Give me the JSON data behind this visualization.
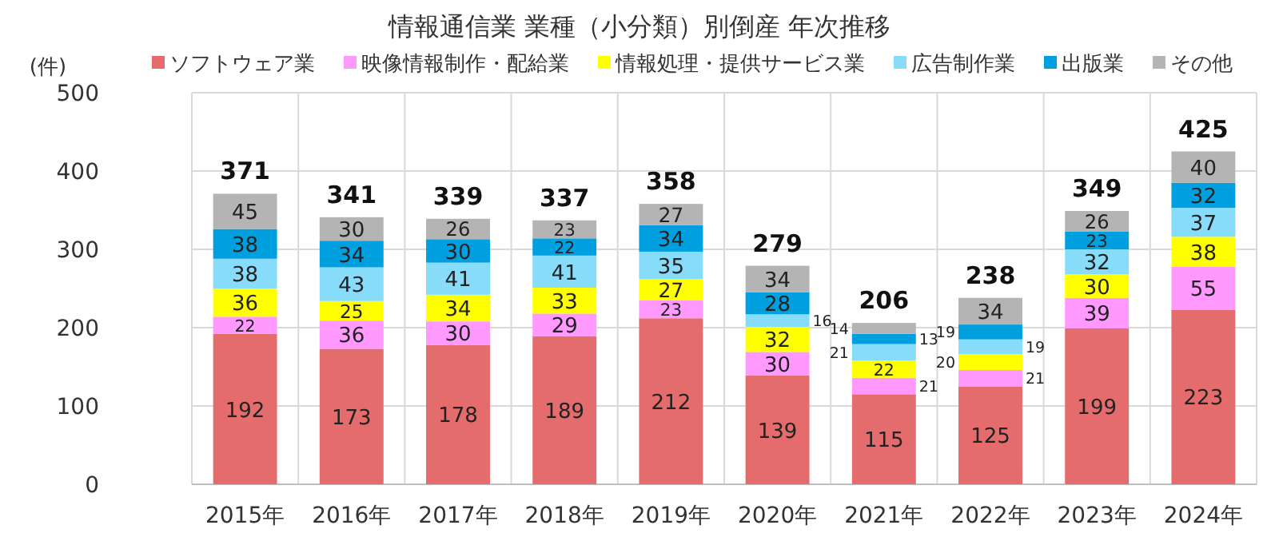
{
  "chart_data": {
    "type": "bar",
    "title": "情報通信業 業種（小分類）別倒産 年次推移",
    "ylabel": "(件)",
    "categories": [
      "2015年",
      "2016年",
      "2017年",
      "2018年",
      "2019年",
      "2020年",
      "2021年",
      "2022年",
      "2023年",
      "2024年"
    ],
    "stacked": true,
    "data_labels": true,
    "grid": true,
    "legend": "top",
    "ylim": [
      0,
      500
    ],
    "yticks": [
      0,
      100,
      200,
      300,
      400,
      500
    ],
    "totals": [
      "371",
      "341",
      "339",
      "337",
      "358",
      "279",
      "206",
      "238",
      "349",
      "425"
    ],
    "series": [
      {
        "name": "ソフトウェア業",
        "color": "#e46c6c",
        "values": [
          192,
          173,
          178,
          189,
          212,
          139,
          115,
          125,
          199,
          223
        ]
      },
      {
        "name": "映像情報制作・配給業",
        "color": "#ff99ff",
        "values": [
          22,
          36,
          30,
          29,
          23,
          30,
          21,
          21,
          39,
          55
        ]
      },
      {
        "name": "情報処理・提供サービス業",
        "color": "#ffff00",
        "values": [
          36,
          25,
          34,
          33,
          27,
          32,
          22,
          20,
          30,
          38
        ]
      },
      {
        "name": "広告制作業",
        "color": "#87dcfa",
        "values": [
          38,
          43,
          41,
          41,
          35,
          16,
          21,
          19,
          32,
          37
        ]
      },
      {
        "name": "出版業",
        "color": "#00a0e0",
        "values": [
          38,
          34,
          30,
          22,
          34,
          28,
          13,
          19,
          23,
          32
        ]
      },
      {
        "name": "その他",
        "color": "#b4b4b4",
        "values": [
          45,
          30,
          26,
          23,
          27,
          34,
          14,
          34,
          26,
          40
        ]
      }
    ]
  }
}
